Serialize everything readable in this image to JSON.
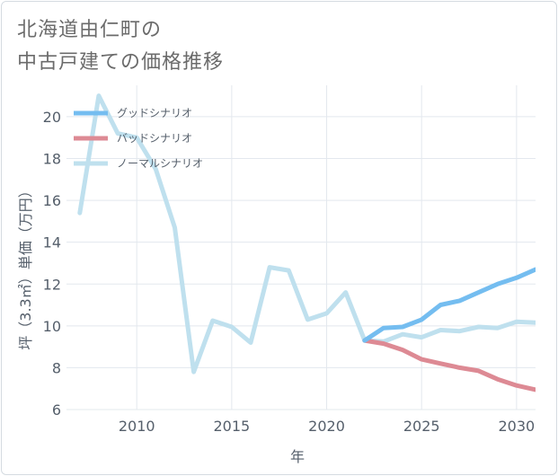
{
  "title_lines": [
    "北海道由仁町の",
    "中古戸建ての価格推移"
  ],
  "chart_data": {
    "type": "line",
    "xlabel": "年",
    "ylabel": "坪（3.3㎡）単価（万円）",
    "xlim": [
      2006.3,
      2031
    ],
    "ylim": [
      6,
      21.5
    ],
    "x_ticks": [
      2010,
      2015,
      2020,
      2025,
      2030
    ],
    "y_ticks": [
      6,
      8,
      10,
      12,
      14,
      16,
      18,
      20
    ],
    "grid": true,
    "legend_position": "top-left",
    "series": [
      {
        "name": "グッドシナリオ",
        "color": "#74bdf0",
        "x": [
          2022,
          2023,
          2024,
          2025,
          2026,
          2027,
          2028,
          2029,
          2030,
          2031
        ],
        "y": [
          9.3,
          9.9,
          9.95,
          10.3,
          11.0,
          11.2,
          11.6,
          12.0,
          12.3,
          12.7
        ]
      },
      {
        "name": "バッドシナリオ",
        "color": "#dd8a94",
        "x": [
          2022,
          2023,
          2024,
          2025,
          2026,
          2027,
          2028,
          2029,
          2030,
          2031
        ],
        "y": [
          9.3,
          9.15,
          8.85,
          8.4,
          8.2,
          8.0,
          7.85,
          7.45,
          7.15,
          6.95
        ]
      },
      {
        "name": "ノーマルシナリオ",
        "color": "#bfe0ee",
        "x": [
          2007,
          2008,
          2009,
          2010,
          2011,
          2012,
          2013,
          2014,
          2015,
          2016,
          2017,
          2018,
          2019,
          2020,
          2021,
          2022,
          2023,
          2024,
          2025,
          2026,
          2027,
          2028,
          2029,
          2030,
          2031
        ],
        "y": [
          15.4,
          21.0,
          19.2,
          19.0,
          17.5,
          14.7,
          7.8,
          10.25,
          9.95,
          9.2,
          12.8,
          12.65,
          10.3,
          10.6,
          11.6,
          9.3,
          9.25,
          9.6,
          9.45,
          9.8,
          9.75,
          9.95,
          9.9,
          10.2,
          10.15
        ]
      }
    ]
  }
}
